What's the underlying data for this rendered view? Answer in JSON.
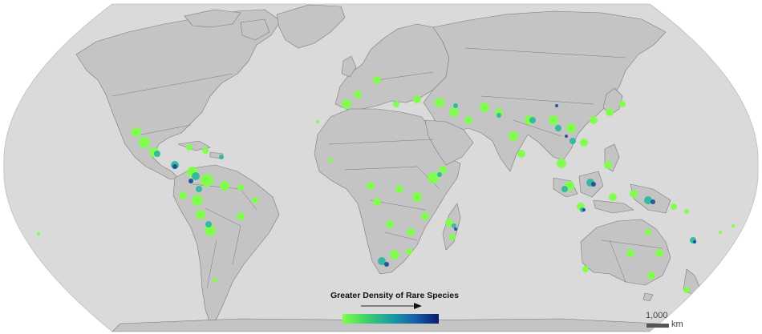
{
  "legend": {
    "title": "Greater Density of Rare Species",
    "gradient": [
      "#7fff4a",
      "#3fd06a",
      "#1b9fa0",
      "#1860a8",
      "#0a1a6e"
    ]
  },
  "scale": {
    "value": "1,000",
    "unit": "km"
  },
  "colors": {
    "ocean": "#dadada",
    "land": "#c4c4c4",
    "border": "#7a7a7a",
    "low": "#7fff4a",
    "mid": "#2fb8a0",
    "high": "#1a4a9a"
  }
}
